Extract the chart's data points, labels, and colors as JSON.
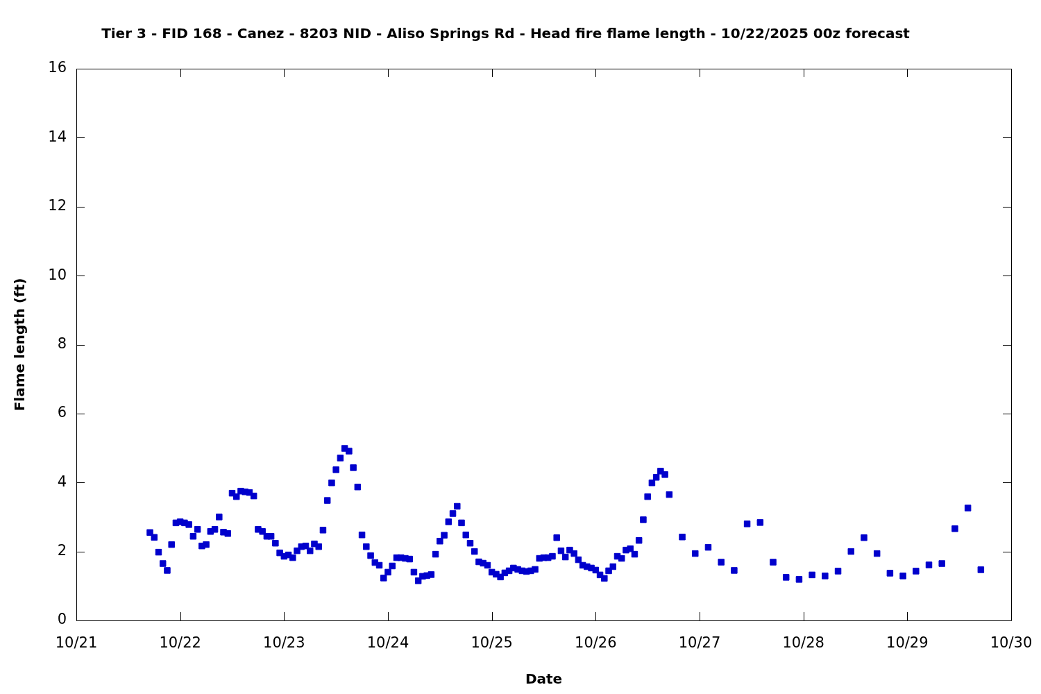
{
  "chart_data": {
    "type": "scatter",
    "title": "Tier 3 - FID 168 - Canez - 8203 NID - Aliso Springs Rd - Head fire flame length - 10/22/2025 00z forecast",
    "xlabel": "Date",
    "ylabel": "Flame length (ft)",
    "x": [
      "--10-21T17:00",
      "--10-21T18:00",
      "--10-21T19:00",
      "--10-21T20:00",
      "--10-21T21:00",
      "--10-21T22:00",
      "--10-21T23:00",
      "--10-22T00:00",
      "--10-22T01:00",
      "--10-22T02:00",
      "--10-22T03:00",
      "--10-22T04:00",
      "--10-22T05:00",
      "--10-22T06:00",
      "--10-22T07:00",
      "--10-22T08:00",
      "--10-22T09:00",
      "--10-22T10:00",
      "--10-22T11:00",
      "--10-22T12:00",
      "--10-22T13:00",
      "--10-22T14:00",
      "--10-22T15:00",
      "--10-22T16:00",
      "--10-22T17:00",
      "--10-22T18:00",
      "--10-22T19:00",
      "--10-22T20:00",
      "--10-22T21:00",
      "--10-22T22:00",
      "--10-22T23:00",
      "--10-23T00:00",
      "--10-23T01:00",
      "--10-23T02:00",
      "--10-23T03:00",
      "--10-23T04:00",
      "--10-23T05:00",
      "--10-23T06:00",
      "--10-23T07:00",
      "--10-23T08:00",
      "--10-23T09:00",
      "--10-23T10:00",
      "--10-23T11:00",
      "--10-23T12:00",
      "--10-23T13:00",
      "--10-23T14:00",
      "--10-23T15:00",
      "--10-23T16:00",
      "--10-23T17:00",
      "--10-23T18:00",
      "--10-23T19:00",
      "--10-23T20:00",
      "--10-23T21:00",
      "--10-23T22:00",
      "--10-23T23:00",
      "--10-24T00:00",
      "--10-24T01:00",
      "--10-24T02:00",
      "--10-24T03:00",
      "--10-24T04:00",
      "--10-24T05:00",
      "--10-24T06:00",
      "--10-24T07:00",
      "--10-24T08:00",
      "--10-24T09:00",
      "--10-24T10:00",
      "--10-24T11:00",
      "--10-24T12:00",
      "--10-24T13:00",
      "--10-24T14:00",
      "--10-24T15:00",
      "--10-24T16:00",
      "--10-24T17:00",
      "--10-24T18:00",
      "--10-24T19:00",
      "--10-24T20:00",
      "--10-24T21:00",
      "--10-24T22:00",
      "--10-24T23:00",
      "--10-25T00:00",
      "--10-25T01:00",
      "--10-25T02:00",
      "--10-25T03:00",
      "--10-25T04:00",
      "--10-25T05:00",
      "--10-25T06:00",
      "--10-25T07:00",
      "--10-25T08:00",
      "--10-25T09:00",
      "--10-25T10:00",
      "--10-25T11:00",
      "--10-25T12:00",
      "--10-25T13:00",
      "--10-25T14:00",
      "--10-25T15:00",
      "--10-25T16:00",
      "--10-25T17:00",
      "--10-25T18:00",
      "--10-25T19:00",
      "--10-25T20:00",
      "--10-25T21:00",
      "--10-25T22:00",
      "--10-25T23:00",
      "--10-26T00:00",
      "--10-26T01:00",
      "--10-26T02:00",
      "--10-26T03:00",
      "--10-26T04:00",
      "--10-26T05:00",
      "--10-26T06:00",
      "--10-26T07:00",
      "--10-26T08:00",
      "--10-26T09:00",
      "--10-26T10:00",
      "--10-26T11:00",
      "--10-26T12:00",
      "--10-26T13:00",
      "--10-26T14:00",
      "--10-26T15:00",
      "--10-26T16:00",
      "--10-26T17:00",
      "--10-26T20:00",
      "--10-26T23:00",
      "--10-27T02:00",
      "--10-27T05:00",
      "--10-27T08:00",
      "--10-27T11:00",
      "--10-27T14:00",
      "--10-27T17:00",
      "--10-27T20:00",
      "--10-27T23:00",
      "--10-28T02:00",
      "--10-28T05:00",
      "--10-28T08:00",
      "--10-28T11:00",
      "--10-28T14:00",
      "--10-28T17:00",
      "--10-28T20:00",
      "--10-28T23:00",
      "--10-29T02:00",
      "--10-29T05:00",
      "--10-29T08:00",
      "--10-29T11:00",
      "--10-29T14:00",
      "--10-29T17:00"
    ],
    "values": [
      2.55,
      2.41,
      1.98,
      1.65,
      1.45,
      2.2,
      2.83,
      2.86,
      2.83,
      2.78,
      2.44,
      2.64,
      2.16,
      2.2,
      2.58,
      2.64,
      3.0,
      2.56,
      2.52,
      3.69,
      3.59,
      3.75,
      3.73,
      3.71,
      3.61,
      2.64,
      2.58,
      2.44,
      2.44,
      2.24,
      1.96,
      1.86,
      1.9,
      1.82,
      2.02,
      2.14,
      2.16,
      2.02,
      2.22,
      2.14,
      2.62,
      3.48,
      3.99,
      4.37,
      4.71,
      4.99,
      4.91,
      4.43,
      3.87,
      2.48,
      2.14,
      1.88,
      1.68,
      1.6,
      1.23,
      1.4,
      1.58,
      1.82,
      1.82,
      1.8,
      1.78,
      1.4,
      1.15,
      1.28,
      1.3,
      1.33,
      1.92,
      2.3,
      2.47,
      2.86,
      3.1,
      3.31,
      2.83,
      2.48,
      2.24,
      2.0,
      1.7,
      1.66,
      1.6,
      1.4,
      1.34,
      1.26,
      1.38,
      1.44,
      1.52,
      1.48,
      1.44,
      1.42,
      1.44,
      1.48,
      1.8,
      1.82,
      1.82,
      1.86,
      2.4,
      2.02,
      1.84,
      2.04,
      1.94,
      1.76,
      1.6,
      1.56,
      1.52,
      1.46,
      1.32,
      1.22,
      1.44,
      1.56,
      1.86,
      1.8,
      2.04,
      2.08,
      1.92,
      2.32,
      2.92,
      3.59,
      3.99,
      4.15,
      4.33,
      4.23,
      3.65,
      2.42,
      1.94,
      2.12,
      1.69,
      1.45,
      2.8,
      2.84,
      1.69,
      1.25,
      1.19,
      1.32,
      1.29,
      1.43,
      2.0,
      2.4,
      1.94,
      1.37,
      1.29,
      1.43,
      1.61,
      1.65,
      2.66,
      3.26,
      1.47
    ],
    "color": "#0000cc",
    "marker": "square",
    "xlim": [
      "--10-21",
      "--10-30"
    ],
    "xticks": [
      {
        "value": "--10-21",
        "label": "10/21"
      },
      {
        "value": "--10-22",
        "label": "10/22"
      },
      {
        "value": "--10-23",
        "label": "10/23"
      },
      {
        "value": "--10-24",
        "label": "10/24"
      },
      {
        "value": "--10-25",
        "label": "10/25"
      },
      {
        "value": "--10-26",
        "label": "10/26"
      },
      {
        "value": "--10-27",
        "label": "10/27"
      },
      {
        "value": "--10-28",
        "label": "10/28"
      },
      {
        "value": "--10-29",
        "label": "10/29"
      },
      {
        "value": "--10-30",
        "label": "10/30"
      }
    ],
    "ylim": [
      0,
      16
    ],
    "yticks": [
      0,
      2,
      4,
      6,
      8,
      10,
      12,
      14,
      16
    ],
    "grid": false,
    "legend": false
  }
}
